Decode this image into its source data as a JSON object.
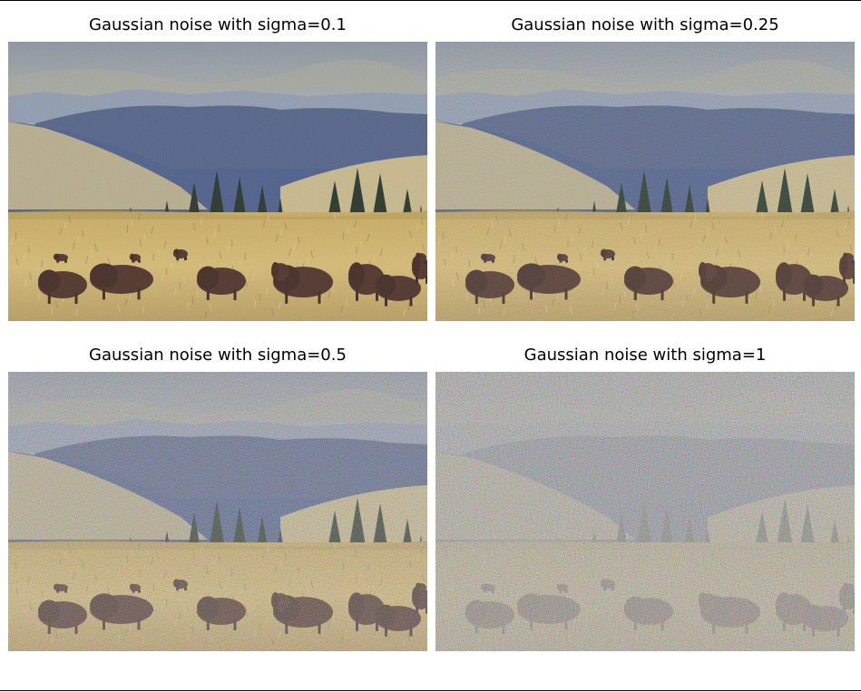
{
  "figure": {
    "panels": [
      {
        "title": "Gaussian noise with sigma=0.1",
        "noise_level": 0.1
      },
      {
        "title": "Gaussian noise with sigma=0.25",
        "noise_level": 0.25
      },
      {
        "title": "Gaussian noise with sigma=0.5",
        "noise_level": 0.5
      },
      {
        "title": "Gaussian noise with sigma=1",
        "noise_level": 1
      }
    ],
    "scene": "bison grazing in a grassy meadow with evergreen trees and blue mountains under a cloudy sky"
  }
}
